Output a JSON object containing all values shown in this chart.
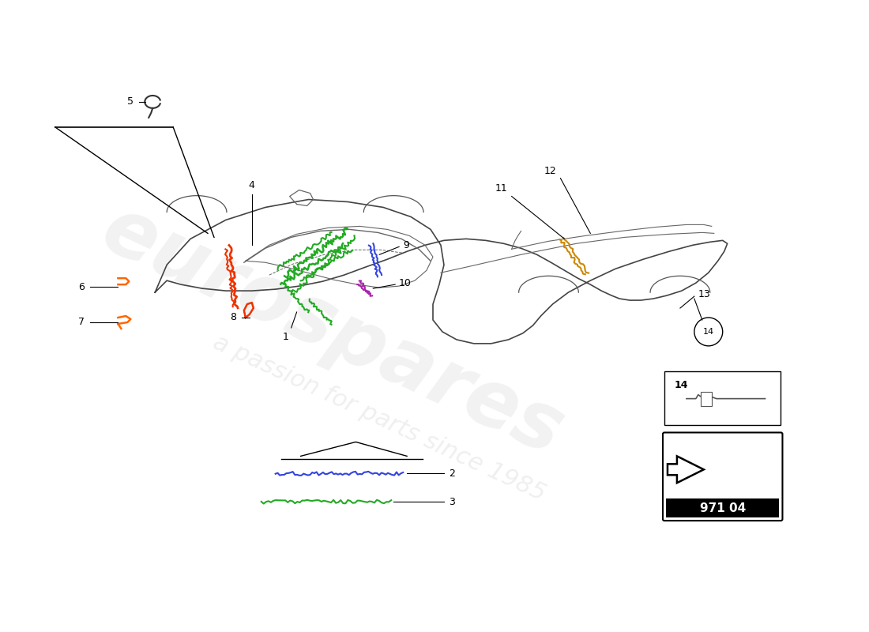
{
  "bg_color": "#ffffff",
  "page_number": "971 04",
  "car_body_color": "#444444",
  "car_interior_color": "#666666",
  "green_color": "#22aa22",
  "red_color": "#ee3300",
  "blue_color": "#3344dd",
  "purple_color": "#aa22aa",
  "yellow_color": "#cc8800",
  "orange_color": "#ff6600",
  "part_numbers": [
    "1",
    "2",
    "3",
    "4",
    "5",
    "6",
    "7",
    "8",
    "9",
    "10",
    "11",
    "12",
    "13",
    "14"
  ]
}
